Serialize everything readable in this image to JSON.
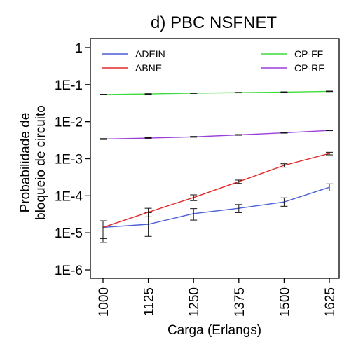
{
  "chart_data": {
    "type": "line",
    "title": "d) PBC NSFNET",
    "xlabel": "Carga (Erlangs)",
    "ylabel": [
      "Probabilidade de",
      "bloqueio de circuito"
    ],
    "x": [
      1000,
      1125,
      1250,
      1375,
      1500,
      1625
    ],
    "x_tick_labels": [
      "1000",
      "1125",
      "1250",
      "1375",
      "1500",
      "1625"
    ],
    "y_scale": "log",
    "ylim": [
      1e-06,
      1
    ],
    "y_ticks": [
      1,
      0.1,
      0.01,
      0.001,
      0.0001,
      1e-05,
      1e-06
    ],
    "y_tick_labels": [
      "1",
      "1E-1",
      "1E-2",
      "1E-3",
      "1E-4",
      "1E-5",
      "1E-6"
    ],
    "grid": false,
    "legend_position": "top",
    "series": [
      {
        "name": "ADEIN",
        "color": "#4b5fd6",
        "values": [
          1.4e-05,
          1.7e-05,
          3.3e-05,
          4.6e-05,
          6.8e-05,
          0.00017
        ],
        "err_low": [
          5.5e-06,
          8e-06,
          2.2e-05,
          3.5e-05,
          5.2e-05,
          0.000135
        ],
        "err_high": [
          2.1e-05,
          3.5e-05,
          4.5e-05,
          5.8e-05,
          8.8e-05,
          0.00021
        ]
      },
      {
        "name": "ABNE",
        "color": "#e02b2b",
        "values": [
          1.4e-05,
          3.6e-05,
          9e-05,
          0.00024,
          0.00066,
          0.00138
        ],
        "err_low": [
          7e-06,
          2.7e-05,
          7.4e-05,
          0.000215,
          0.00059,
          0.00127
        ],
        "err_high": [
          2.1e-05,
          4.6e-05,
          0.000106,
          0.000265,
          0.00073,
          0.00149
        ]
      },
      {
        "name": "CP-FF",
        "color": "#3ddc3d",
        "values": [
          0.054,
          0.056,
          0.059,
          0.061,
          0.063,
          0.066
        ],
        "err_low": [
          0.053,
          0.055,
          0.058,
          0.06,
          0.062,
          0.065
        ],
        "err_high": [
          0.055,
          0.057,
          0.06,
          0.062,
          0.064,
          0.067
        ]
      },
      {
        "name": "CP-RF",
        "color": "#9b3fd8",
        "values": [
          0.0034,
          0.0036,
          0.0039,
          0.0044,
          0.005,
          0.0058
        ],
        "err_low": [
          0.0033,
          0.0035,
          0.0038,
          0.0043,
          0.0049,
          0.0057
        ],
        "err_high": [
          0.0035,
          0.0037,
          0.004,
          0.0045,
          0.0051,
          0.0059
        ]
      }
    ]
  }
}
